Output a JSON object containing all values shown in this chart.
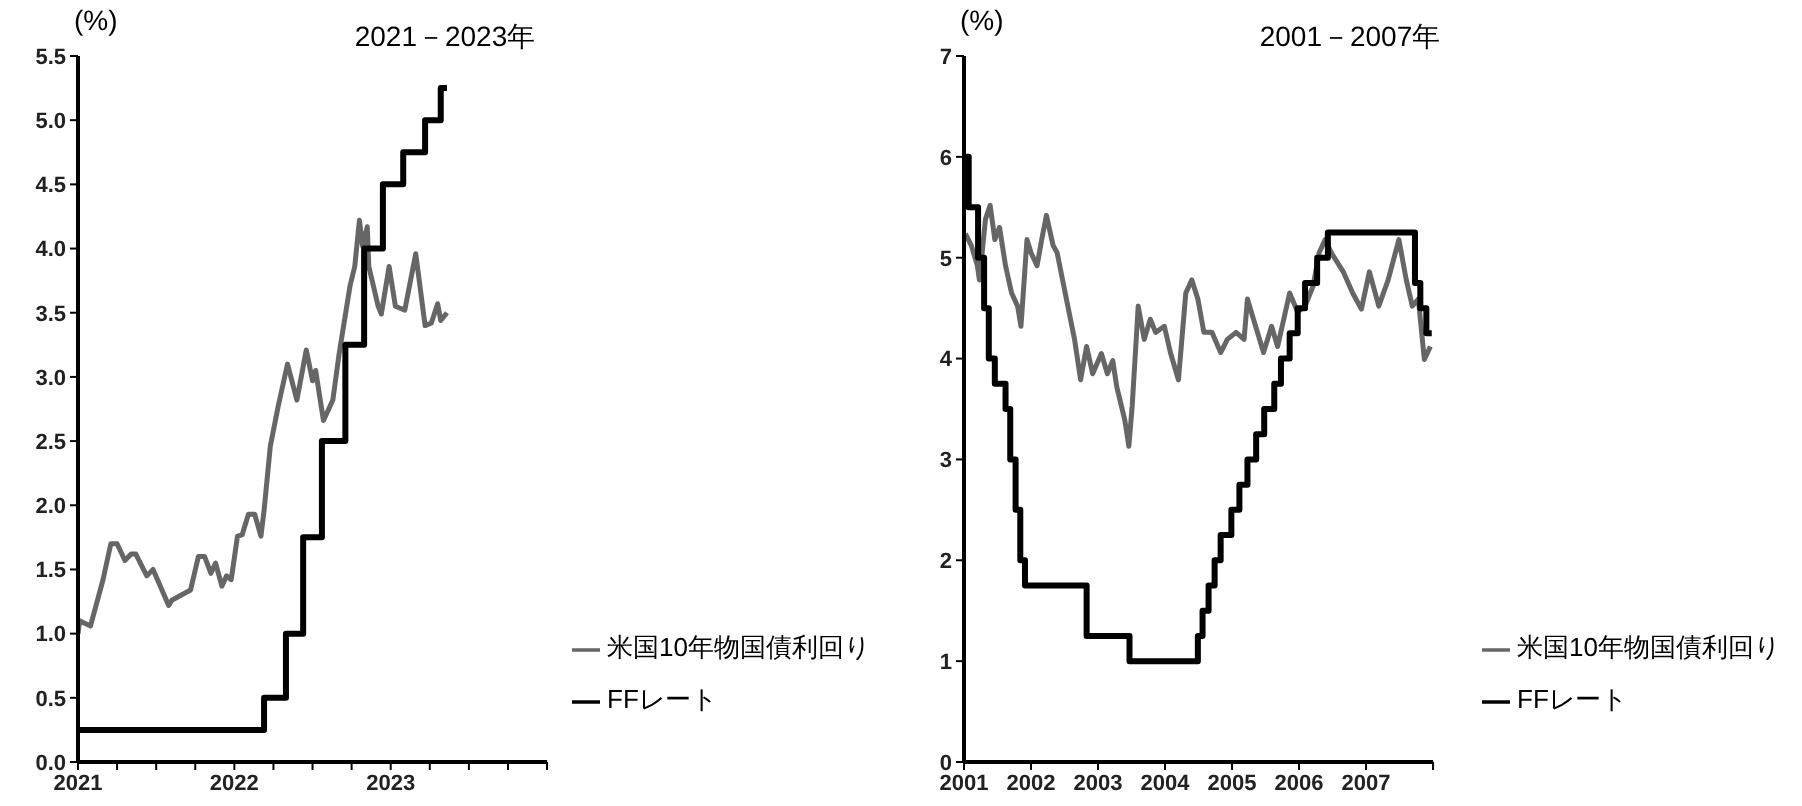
{
  "chart_data": [
    {
      "type": "line",
      "title": "2021－2023年",
      "ylabel": "(%)",
      "legend": "bottom right",
      "grid": false,
      "marker": "none",
      "xlim": [
        2021,
        2024
      ],
      "xticks": [
        2021,
        {
          "value": 2021.25,
          "label": null
        },
        {
          "value": 2021.5,
          "label": null
        },
        {
          "value": 2021.75,
          "label": null
        },
        2022,
        {
          "value": 2022.25,
          "label": null
        },
        {
          "value": 2022.5,
          "label": null
        },
        {
          "value": 2022.75,
          "label": null
        },
        2023,
        {
          "value": 2023.25,
          "label": null
        },
        {
          "value": 2023.5,
          "label": null
        },
        {
          "value": 2023.75,
          "label": null
        },
        {
          "value": 2024,
          "label": null
        }
      ],
      "ylim": [
        0,
        5.5
      ],
      "yticks": [
        {
          "value": 0,
          "label": "0.0"
        },
        0.5,
        {
          "value": 1,
          "label": "1.0"
        },
        1.5,
        {
          "value": 2,
          "label": "2.0"
        },
        2.5,
        {
          "value": 3,
          "label": "3.0"
        },
        3.5,
        {
          "value": 4,
          "label": "4.0"
        },
        4.5,
        {
          "value": 5,
          "label": "5.0"
        },
        5.5
      ],
      "series": [
        {
          "name": "米国10年物国債利回り",
          "type": "line",
          "color": "#666666",
          "x": [
            2021.0,
            2021.01,
            2021.08,
            2021.16,
            2021.21,
            2021.25,
            2021.3,
            2021.34,
            2021.37,
            2021.44,
            2021.48,
            2021.58,
            2021.6,
            2021.72,
            2021.77,
            2021.81,
            2021.85,
            2021.88,
            2021.92,
            2021.95,
            2021.98,
            2022.02,
            2022.05,
            2022.09,
            2022.13,
            2022.17,
            2022.19,
            2022.23,
            2022.28,
            2022.34,
            2022.4,
            2022.46,
            2022.5,
            2022.52,
            2022.57,
            2022.63,
            2022.67,
            2022.74,
            2022.77,
            2022.8,
            2022.82,
            2022.85,
            2022.86,
            2022.92,
            2022.94,
            2022.99,
            2023.03,
            2023.09,
            2023.16,
            2023.22,
            2023.26,
            2023.3,
            2023.32,
            2023.36
          ],
          "values": [
            1.0,
            1.1,
            1.06,
            1.42,
            1.7,
            1.7,
            1.57,
            1.62,
            1.62,
            1.45,
            1.5,
            1.22,
            1.26,
            1.34,
            1.6,
            1.6,
            1.47,
            1.55,
            1.37,
            1.45,
            1.42,
            1.76,
            1.77,
            1.93,
            1.93,
            1.76,
            1.96,
            2.46,
            2.77,
            3.1,
            2.82,
            3.21,
            2.97,
            3.05,
            2.66,
            2.82,
            3.18,
            3.71,
            3.86,
            4.22,
            4.02,
            4.17,
            3.86,
            3.55,
            3.49,
            3.86,
            3.55,
            3.52,
            3.96,
            3.4,
            3.42,
            3.57,
            3.44,
            3.5
          ]
        },
        {
          "name": "FFレート",
          "type": "step",
          "color": "#000000",
          "x": [
            2021.0,
            2022.19,
            2022.33,
            2022.44,
            2022.56,
            2022.71,
            2022.83,
            2022.95,
            2023.08,
            2023.22,
            2023.32,
            2023.36
          ],
          "values": [
            0.25,
            0.5,
            1.0,
            1.75,
            2.5,
            3.25,
            4.0,
            4.5,
            4.75,
            5.0,
            5.25,
            5.25
          ]
        }
      ]
    },
    {
      "type": "line",
      "title": "2001－2007年",
      "ylabel": "(%)",
      "legend": "bottom right",
      "grid": false,
      "marker": "none",
      "xlim": [
        2001,
        2008
      ],
      "xticks": [
        2001,
        2002,
        2003,
        2004,
        2005,
        2006,
        2007,
        {
          "value": 2008,
          "label": null
        }
      ],
      "ylim": [
        0,
        7
      ],
      "yticks": [
        0,
        1,
        2,
        3,
        4,
        5,
        6,
        7
      ],
      "series": [
        {
          "name": "米国10年物国債利回り",
          "type": "line",
          "color": "#666666",
          "x": [
            2001.02,
            2001.11,
            2001.2,
            2001.23,
            2001.32,
            2001.39,
            2001.46,
            2001.53,
            2001.62,
            2001.71,
            2001.8,
            2001.85,
            2001.94,
            2002.0,
            2002.09,
            2002.16,
            2002.23,
            2002.33,
            2002.39,
            2002.51,
            2002.65,
            2002.74,
            2002.83,
            2002.92,
            2003.05,
            2003.14,
            2003.22,
            2003.28,
            2003.4,
            2003.46,
            2003.51,
            2003.6,
            2003.69,
            2003.78,
            2003.86,
            2003.99,
            2004.08,
            2004.2,
            2004.31,
            2004.4,
            2004.49,
            2004.58,
            2004.7,
            2004.83,
            2004.93,
            2005.06,
            2005.18,
            2005.23,
            2005.32,
            2005.47,
            2005.59,
            2005.68,
            2005.86,
            2005.98,
            2006.09,
            2006.21,
            2006.3,
            2006.39,
            2006.48,
            2006.66,
            2006.8,
            2006.93,
            2007.05,
            2007.19,
            2007.33,
            2007.49,
            2007.6,
            2007.69,
            2007.78,
            2007.87,
            2007.96
          ],
          "values": [
            5.24,
            5.12,
            4.92,
            4.78,
            5.38,
            5.52,
            5.18,
            5.3,
            4.92,
            4.65,
            4.52,
            4.32,
            5.18,
            5.05,
            4.92,
            5.18,
            5.42,
            5.12,
            5.05,
            4.65,
            4.19,
            3.79,
            4.12,
            3.85,
            4.05,
            3.85,
            3.98,
            3.72,
            3.39,
            3.13,
            3.53,
            4.52,
            4.19,
            4.39,
            4.26,
            4.32,
            4.06,
            3.79,
            4.65,
            4.78,
            4.59,
            4.26,
            4.26,
            4.06,
            4.19,
            4.26,
            4.19,
            4.59,
            4.39,
            4.06,
            4.32,
            4.12,
            4.65,
            4.46,
            4.52,
            4.72,
            5.05,
            5.18,
            5.05,
            4.86,
            4.65,
            4.49,
            4.86,
            4.52,
            4.78,
            5.18,
            4.78,
            4.52,
            4.59,
            3.99,
            4.12
          ]
        },
        {
          "name": "FFレート",
          "type": "step",
          "color": "#000000",
          "x": [
            2001.0,
            2001.07,
            2001.21,
            2001.3,
            2001.37,
            2001.46,
            2001.62,
            2001.69,
            2001.77,
            2001.84,
            2001.91,
            2002.83,
            2003.47,
            2004.49,
            2004.56,
            2004.65,
            2004.74,
            2004.83,
            2004.99,
            2005.11,
            2005.23,
            2005.36,
            2005.48,
            2005.63,
            2005.73,
            2005.86,
            2005.98,
            2006.09,
            2006.27,
            2006.43,
            2007.73,
            2007.81,
            2007.9,
            2007.98
          ],
          "values": [
            6.0,
            5.5,
            5.0,
            4.5,
            4.0,
            3.75,
            3.5,
            3.0,
            2.5,
            2.0,
            1.75,
            1.25,
            1.0,
            1.25,
            1.5,
            1.75,
            2.0,
            2.25,
            2.5,
            2.75,
            3.0,
            3.25,
            3.5,
            3.75,
            4.0,
            4.25,
            4.5,
            4.75,
            5.0,
            5.25,
            4.75,
            4.5,
            4.25,
            4.25
          ]
        }
      ]
    }
  ]
}
